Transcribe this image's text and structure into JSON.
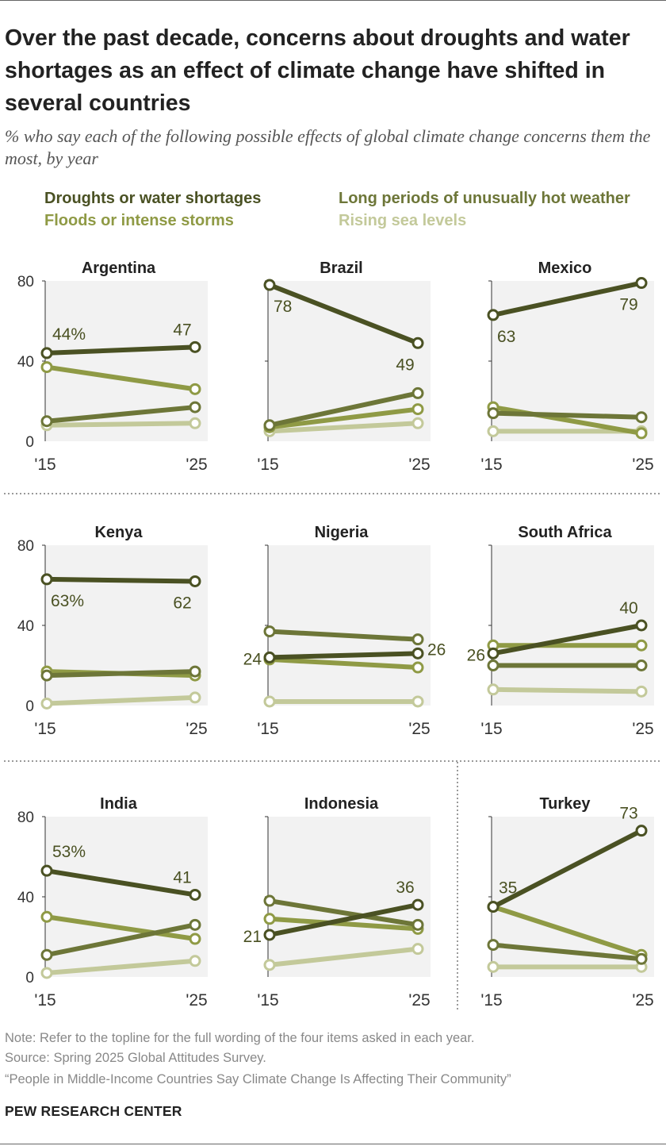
{
  "title": "Over the past decade, concerns about droughts and water shortages as an effect of climate change have shifted in several countries",
  "subtitle": "% who say each of the following possible effects of global climate change concerns them the most, by year",
  "colors": {
    "droughts": "#4a5123",
    "heat": "#6d7638",
    "floods": "#8f9a45",
    "sea": "#c3c99a",
    "panel_bg": "#f2f2f2",
    "axis": "#333333"
  },
  "legend": [
    {
      "key": "droughts",
      "label": "Droughts or water shortages"
    },
    {
      "key": "heat",
      "label": "Long periods of unusually hot weather"
    },
    {
      "key": "floods",
      "label": "Floods or intense storms"
    },
    {
      "key": "sea",
      "label": "Rising sea levels"
    }
  ],
  "chart_data": {
    "type": "line",
    "years": [
      "'15",
      "'25"
    ],
    "ylim": [
      0,
      80
    ],
    "yticks": [
      "0",
      "40",
      "80"
    ],
    "series_order": [
      "sea",
      "floods",
      "heat",
      "droughts"
    ],
    "panels": [
      {
        "country": "Argentina",
        "droughts": [
          44,
          47
        ],
        "heat": [
          10,
          17
        ],
        "floods": [
          37,
          26
        ],
        "sea": [
          8,
          9
        ],
        "labels": {
          "start": "44%",
          "end": "47"
        }
      },
      {
        "country": "Brazil",
        "droughts": [
          78,
          49
        ],
        "heat": [
          8,
          24
        ],
        "floods": [
          7,
          16
        ],
        "sea": [
          5,
          9
        ],
        "labels": {
          "start": "78",
          "end": "49"
        }
      },
      {
        "country": "Mexico",
        "droughts": [
          63,
          79
        ],
        "heat": [
          14,
          12
        ],
        "floods": [
          17,
          4
        ],
        "sea": [
          5,
          5
        ],
        "labels": {
          "start": "63",
          "end": "79"
        }
      },
      {
        "country": "Kenya",
        "droughts": [
          63,
          62
        ],
        "heat": [
          15,
          17
        ],
        "floods": [
          17,
          15
        ],
        "sea": [
          1,
          4
        ],
        "labels": {
          "start": "63%",
          "end": "62"
        }
      },
      {
        "country": "Nigeria",
        "droughts": [
          24,
          26
        ],
        "heat": [
          37,
          33
        ],
        "floods": [
          23,
          19
        ],
        "sea": [
          2,
          2
        ],
        "labels": {
          "start": "24",
          "end": "26"
        }
      },
      {
        "country": "South Africa",
        "droughts": [
          26,
          40
        ],
        "heat": [
          20,
          20
        ],
        "floods": [
          30,
          30
        ],
        "sea": [
          8,
          7
        ],
        "labels": {
          "start": "26",
          "end": "40"
        }
      },
      {
        "country": "India",
        "droughts": [
          53,
          41
        ],
        "heat": [
          11,
          26
        ],
        "floods": [
          30,
          19
        ],
        "sea": [
          2,
          8
        ],
        "labels": {
          "start": "53%",
          "end": "41"
        }
      },
      {
        "country": "Indonesia",
        "droughts": [
          21,
          36
        ],
        "heat": [
          38,
          26
        ],
        "floods": [
          29,
          24
        ],
        "sea": [
          6,
          14
        ],
        "labels": {
          "start": "21",
          "end": "36"
        }
      },
      {
        "country": "Turkey",
        "droughts": [
          35,
          73
        ],
        "heat": [
          16,
          9
        ],
        "floods": [
          35,
          11
        ],
        "sea": [
          5,
          5
        ],
        "labels": {
          "start": "35",
          "end": "73"
        }
      }
    ]
  },
  "notes": {
    "note": "Note: Refer to the topline for the full wording of the four items asked in each year.",
    "source": "Source: Spring 2025 Global Attitudes Survey.",
    "report": "“People in Middle-Income Countries Say Climate Change Is Affecting Their Community”"
  },
  "brand": "PEW RESEARCH CENTER"
}
